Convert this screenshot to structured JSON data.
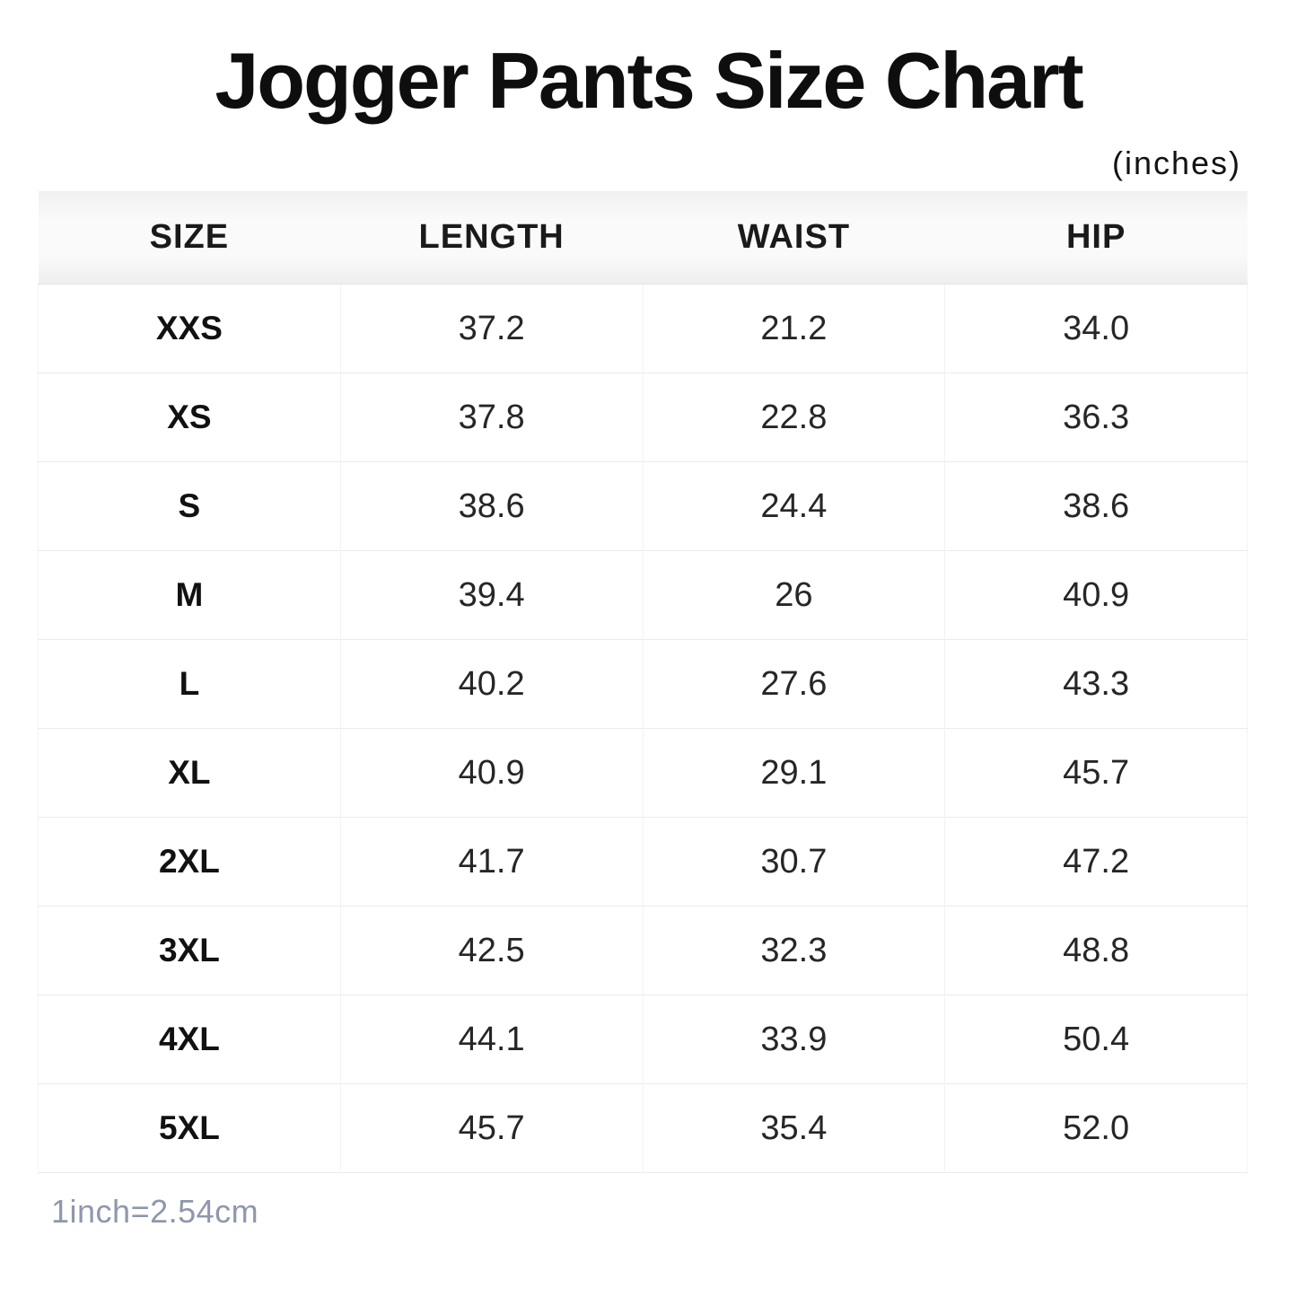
{
  "chart_data": {
    "type": "table",
    "title": "Jogger Pants Size Chart",
    "unit_label": "(inches)",
    "unit": "inches",
    "columns": [
      "SIZE",
      "LENGTH",
      "WAIST",
      "HIP"
    ],
    "rows": [
      [
        "XXS",
        "37.2",
        "21.2",
        "34.0"
      ],
      [
        "XS",
        "37.8",
        "22.8",
        "36.3"
      ],
      [
        "S",
        "38.6",
        "24.4",
        "38.6"
      ],
      [
        "M",
        "39.4",
        "26",
        "40.9"
      ],
      [
        "L",
        "40.2",
        "27.6",
        "43.3"
      ],
      [
        "XL",
        "40.9",
        "29.1",
        "45.7"
      ],
      [
        "2XL",
        "41.7",
        "30.7",
        "47.2"
      ],
      [
        "3XL",
        "42.5",
        "32.3",
        "48.8"
      ],
      [
        "4XL",
        "44.1",
        "33.9",
        "50.4"
      ],
      [
        "5XL",
        "45.7",
        "35.4",
        "52.0"
      ]
    ],
    "note": "1inch=2.54cm",
    "layout_hints": {
      "grid": "light horizontal and vertical separators",
      "header_background": "light gray band",
      "body_background": "white"
    }
  },
  "colors": {
    "title_text": "#0e0e0e",
    "header_bg": "#f4f4f4",
    "header_text": "#1a1a1a",
    "cell_text": "#262626",
    "size_label_text": "#111111",
    "row_border": "#ebebeb",
    "column_border": "#f2f2f2",
    "note_text": "#8f97ab",
    "page_bg": "#ffffff"
  }
}
